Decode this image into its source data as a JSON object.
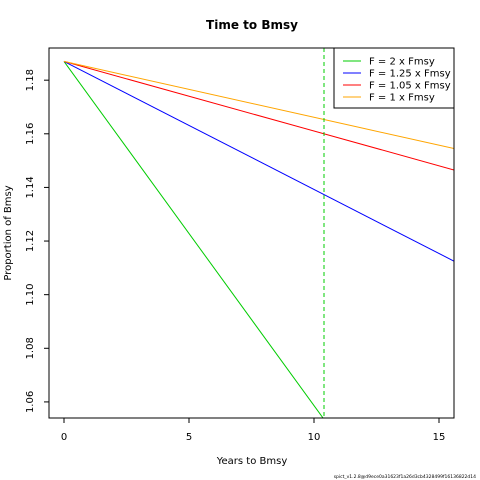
{
  "chart_data": {
    "type": "line",
    "title": "Time to Bmsy",
    "xlabel": "Years to Bmsy",
    "ylabel": "Proportion of Bmsy",
    "xlim": [
      -0.6,
      15.6
    ],
    "ylim": [
      1.054,
      1.192
    ],
    "x_ticks": [
      0,
      5,
      10,
      15
    ],
    "y_ticks": [
      1.06,
      1.08,
      1.1,
      1.12,
      1.14,
      1.16,
      1.18
    ],
    "grid": false,
    "legend_position": "top-right",
    "series": [
      {
        "name": "F = 2 x Fmsy",
        "color": "#00cc00",
        "x": [
          0,
          10.4
        ],
        "y": [
          1.187,
          1.0535
        ]
      },
      {
        "name": "F = 1.25 x Fmsy",
        "color": "#0000ff",
        "x": [
          0,
          15.6
        ],
        "y": [
          1.187,
          1.1125
        ]
      },
      {
        "name": "F = 1.05 x Fmsy",
        "color": "#ff0000",
        "x": [
          0,
          15.6
        ],
        "y": [
          1.187,
          1.1465
        ]
      },
      {
        "name": "F = 1 x Fmsy",
        "color": "#ffa500",
        "x": [
          0,
          15.6
        ],
        "y": [
          1.187,
          1.1545
        ]
      }
    ],
    "vline": {
      "x": 10.4,
      "color": "#00cc00",
      "style": "dashed"
    },
    "footnote": "spict_v1.2.8@d9ece0a31623f1a26d3cb4328499f16136822d14"
  }
}
